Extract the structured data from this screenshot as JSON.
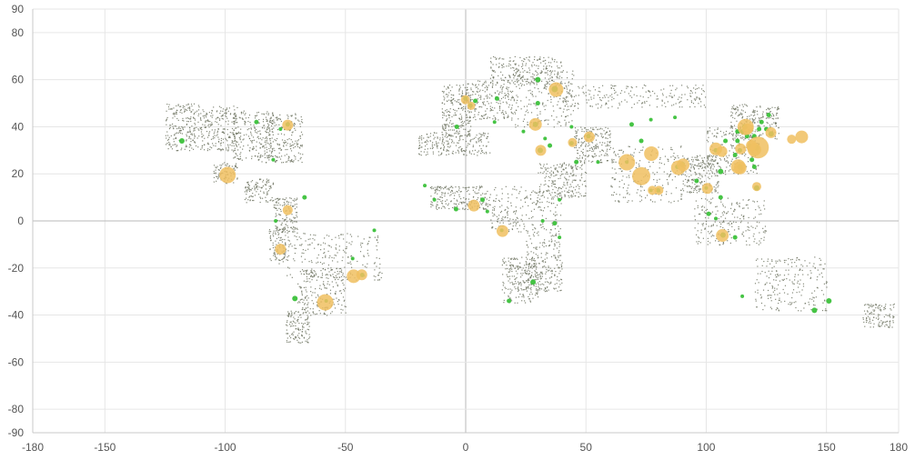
{
  "chart_data": {
    "type": "scatter",
    "title": "",
    "xlabel": "",
    "ylabel": "",
    "xlim": [
      -180,
      180
    ],
    "ylim": [
      -90,
      90
    ],
    "x_ticks": [
      -180,
      -150,
      -100,
      -50,
      0,
      50,
      100,
      150,
      180
    ],
    "y_ticks": [
      90,
      80,
      60,
      40,
      20,
      0,
      -20,
      -40,
      -60,
      -80,
      -90
    ],
    "grid": true,
    "legend": "none",
    "colors": {
      "background_points": "#6e7462",
      "small_cities": "#3cc13b",
      "large_cities": "#f0c060",
      "grid": "#e6e6e6",
      "zero_line": "#b9b9b9"
    },
    "series": [
      {
        "kind": "population_points",
        "description_color": "#6e7462",
        "regions": [
          [
            -125,
            -110,
            30,
            50
          ],
          [
            -110,
            -95,
            30,
            49
          ],
          [
            -97,
            -80,
            26,
            47
          ],
          [
            -85,
            -68,
            25,
            46
          ],
          [
            -105,
            -95,
            16,
            25
          ],
          [
            -92,
            -80,
            8,
            18
          ],
          [
            -80,
            -70,
            -5,
            10
          ],
          [
            -82,
            -75,
            -18,
            -2
          ],
          [
            -75,
            -35,
            -25,
            -5
          ],
          [
            -70,
            -50,
            -40,
            -20
          ],
          [
            -75,
            -65,
            -52,
            -38
          ],
          [
            -10,
            2,
            36,
            58
          ],
          [
            0,
            20,
            43,
            60
          ],
          [
            20,
            45,
            40,
            65
          ],
          [
            10,
            40,
            58,
            70
          ],
          [
            40,
            100,
            48,
            58
          ],
          [
            -15,
            10,
            5,
            15
          ],
          [
            10,
            40,
            -5,
            15
          ],
          [
            25,
            40,
            -30,
            -5
          ],
          [
            15,
            30,
            -35,
            -15
          ],
          [
            45,
            60,
            25,
            40
          ],
          [
            60,
            90,
            8,
            32
          ],
          [
            90,
            105,
            12,
            28
          ],
          [
            100,
            122,
            20,
            40
          ],
          [
            110,
            130,
            35,
            50
          ],
          [
            95,
            125,
            -10,
            10
          ],
          [
            120,
            150,
            -38,
            -15
          ],
          [
            165,
            178,
            -45,
            -35
          ],
          [
            -20,
            10,
            28,
            38
          ],
          [
            30,
            50,
            10,
            25
          ]
        ]
      },
      {
        "name": "",
        "kind": "small_cities",
        "color": "#3cc13b",
        "points": [
          [
            -118,
            34,
            3
          ],
          [
            -74,
            41,
            2.5
          ],
          [
            -87,
            42,
            2.5
          ],
          [
            -80,
            26,
            2
          ],
          [
            -77,
            39,
            2
          ],
          [
            -71,
            -33,
            3
          ],
          [
            -43,
            -23,
            2.5
          ],
          [
            -38,
            -4,
            2
          ],
          [
            -47,
            -16,
            2
          ],
          [
            -67,
            10,
            2.5
          ],
          [
            -79,
            0,
            2
          ],
          [
            -58,
            -34,
            2
          ],
          [
            -13,
            9,
            2
          ],
          [
            -17,
            15,
            2
          ],
          [
            -4,
            5,
            2.5
          ],
          [
            7,
            9,
            2.5
          ],
          [
            9,
            4,
            2
          ],
          [
            15,
            -4,
            2
          ],
          [
            28,
            -26,
            3
          ],
          [
            18,
            -34,
            2.5
          ],
          [
            32,
            0,
            2
          ],
          [
            37,
            -1,
            2.5
          ],
          [
            39,
            9,
            2
          ],
          [
            39,
            -7,
            2
          ],
          [
            31,
            30,
            3
          ],
          [
            46,
            25,
            2.5
          ],
          [
            55,
            25,
            2
          ],
          [
            44,
            33,
            2.5
          ],
          [
            51,
            36,
            2.5
          ],
          [
            67,
            25,
            2
          ],
          [
            73,
            34,
            2.5
          ],
          [
            88,
            23,
            2.5
          ],
          [
            80,
            13,
            2.5
          ],
          [
            77,
            13,
            2
          ],
          [
            90,
            24,
            3
          ],
          [
            96,
            17,
            2.5
          ],
          [
            100,
            14,
            2
          ],
          [
            106,
            10,
            2.5
          ],
          [
            106,
            21,
            3
          ],
          [
            104,
            30,
            2.5
          ],
          [
            114,
            23,
            3
          ],
          [
            121,
            31,
            3
          ],
          [
            116,
            40,
            3
          ],
          [
            125,
            39,
            2.5
          ],
          [
            127,
            37,
            3
          ],
          [
            117,
            36,
            2.5
          ],
          [
            113,
            34,
            2.5
          ],
          [
            108,
            34,
            2.5
          ],
          [
            114,
            30,
            2.5
          ],
          [
            112,
            28,
            2.5
          ],
          [
            119,
            26,
            2.5
          ],
          [
            120,
            23,
            2.5
          ],
          [
            123,
            42,
            2.5
          ],
          [
            126,
            45,
            2.5
          ],
          [
            121,
            14,
            3
          ],
          [
            107,
            -6,
            3
          ],
          [
            112,
            -7,
            2.5
          ],
          [
            101,
            3,
            2.5
          ],
          [
            104,
            1,
            2
          ],
          [
            145,
            -38,
            3
          ],
          [
            151,
            -34,
            3
          ],
          [
            115,
            -32,
            2
          ],
          [
            37,
            56,
            3.5
          ],
          [
            30,
            60,
            3
          ],
          [
            29,
            41,
            3
          ],
          [
            30,
            50,
            2.5
          ],
          [
            2,
            49,
            2.5
          ],
          [
            -0.1,
            52,
            2.5
          ],
          [
            13,
            52,
            2.5
          ],
          [
            4,
            51,
            2.5
          ],
          [
            -3.7,
            40,
            2.5
          ],
          [
            12,
            42,
            2
          ],
          [
            24,
            38,
            2
          ],
          [
            33,
            35,
            2
          ],
          [
            35,
            32,
            2.5
          ],
          [
            44,
            40,
            2
          ],
          [
            69,
            41,
            2.5
          ],
          [
            77,
            43,
            2
          ],
          [
            87,
            44,
            2
          ],
          [
            113,
            38,
            2.5
          ],
          [
            118,
            32,
            2.5
          ],
          [
            115,
            38,
            2.5
          ],
          [
            120,
            36,
            2.5
          ],
          [
            122,
            39,
            2.5
          ]
        ]
      },
      {
        "name": "",
        "kind": "large_cities",
        "color": "#f0c060",
        "points": [
          [
            -99,
            19.5,
            9
          ],
          [
            -74,
            40.7,
            6
          ],
          [
            -74,
            4.6,
            5.5
          ],
          [
            -77,
            -12,
            6
          ],
          [
            -58.4,
            -34.6,
            9
          ],
          [
            -46.6,
            -23.5,
            7.5
          ],
          [
            -43.2,
            -22.9,
            6
          ],
          [
            -0.1,
            51.5,
            5
          ],
          [
            2.3,
            48.9,
            4.5
          ],
          [
            37.6,
            55.8,
            8
          ],
          [
            29,
            41,
            7
          ],
          [
            31.2,
            30,
            6
          ],
          [
            3.4,
            6.5,
            6.5
          ],
          [
            15.3,
            -4.3,
            6.5
          ],
          [
            51.4,
            35.7,
            6
          ],
          [
            44.4,
            33.3,
            5
          ],
          [
            67,
            24.9,
            9
          ],
          [
            73,
            19,
            10
          ],
          [
            77.2,
            28.6,
            8
          ],
          [
            88.4,
            22.6,
            8
          ],
          [
            90.4,
            23.8,
            7
          ],
          [
            80.3,
            13,
            5
          ],
          [
            77.6,
            13,
            5
          ],
          [
            100.5,
            13.8,
            6
          ],
          [
            106.7,
            -6.2,
            7
          ],
          [
            104,
            30.6,
            7
          ],
          [
            106.5,
            29.5,
            6
          ],
          [
            113.3,
            23.1,
            8
          ],
          [
            114.1,
            22.5,
            7
          ],
          [
            121.5,
            31.2,
            12
          ],
          [
            116.4,
            39.9,
            9
          ],
          [
            117.2,
            39.1,
            6
          ],
          [
            126.9,
            37.5,
            6
          ],
          [
            139.7,
            35.7,
            7
          ],
          [
            135.5,
            34.7,
            5
          ],
          [
            114.3,
            30.6,
            6
          ],
          [
            120.2,
            30.3,
            7
          ],
          [
            118.8,
            32,
            6
          ],
          [
            121,
            14.6,
            5
          ]
        ]
      }
    ]
  }
}
